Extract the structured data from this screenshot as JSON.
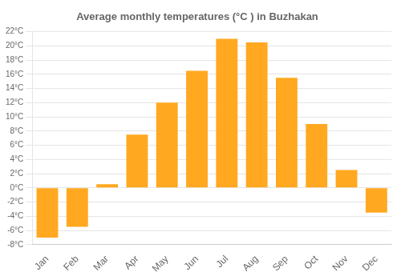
{
  "chart_data": {
    "type": "bar",
    "title": "Average monthly temperatures (°C ) in Buzhakan",
    "categories": [
      "Jan",
      "Feb",
      "Mar",
      "Apr",
      "May",
      "Jun",
      "Jul",
      "Aug",
      "Sep",
      "Oct",
      "Nov",
      "Dec"
    ],
    "values": [
      -7,
      -5.5,
      0.5,
      7.5,
      12,
      16.5,
      21,
      20.5,
      15.5,
      9,
      2.5,
      -3.5
    ],
    "color": "#FFA820",
    "ylim": [
      -8,
      22
    ],
    "yticks": [
      {
        "value": -8,
        "label": "-8°C"
      },
      {
        "value": -6,
        "label": "-6°C"
      },
      {
        "value": -4,
        "label": "-4°C"
      },
      {
        "value": -2,
        "label": "-2°C"
      },
      {
        "value": 0,
        "label": "0°C"
      },
      {
        "value": 2,
        "label": "2°C"
      },
      {
        "value": 4,
        "label": "4°C"
      },
      {
        "value": 6,
        "label": "6°C"
      },
      {
        "value": 8,
        "label": "8°C"
      },
      {
        "value": 10,
        "label": "10°C"
      },
      {
        "value": 12,
        "label": "12°C"
      },
      {
        "value": 14,
        "label": "14°C"
      },
      {
        "value": 16,
        "label": "16°C"
      },
      {
        "value": 18,
        "label": "18°C"
      },
      {
        "value": 20,
        "label": "20°C"
      },
      {
        "value": 22,
        "label": "22°C"
      }
    ],
    "grid": true
  }
}
